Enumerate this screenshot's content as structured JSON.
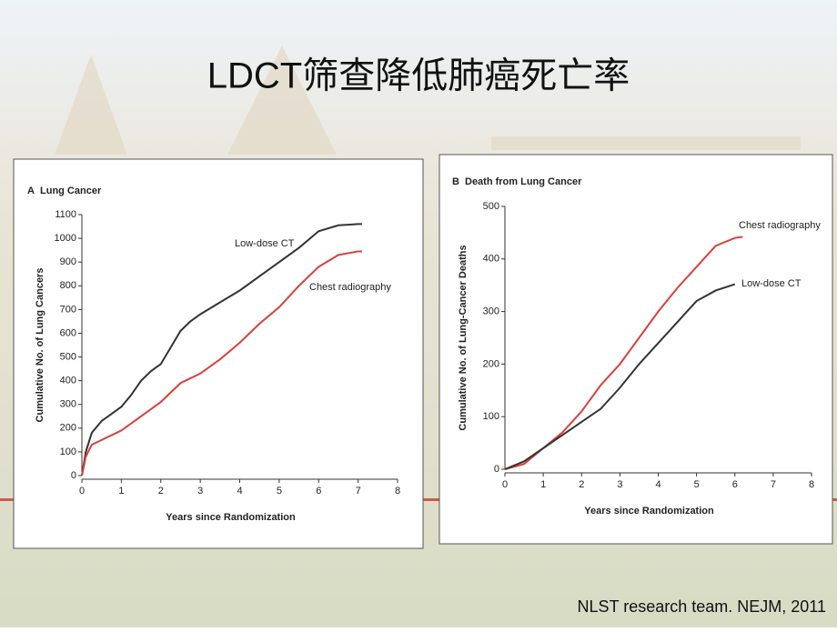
{
  "title": "LDCT筛查降低肺癌死亡率",
  "citation": "NLST research team. NEJM, 2011",
  "chart_data": [
    {
      "type": "line",
      "panel": "A",
      "title": "Lung Cancer",
      "xlabel": "Years since Randomization",
      "ylabel": "Cumulative No. of Lung Cancers",
      "xlim": [
        0,
        8
      ],
      "xticks": [
        0,
        1,
        2,
        3,
        4,
        5,
        6,
        7,
        8
      ],
      "ylim": [
        0,
        1100
      ],
      "yticks": [
        0,
        100,
        200,
        300,
        400,
        500,
        600,
        700,
        800,
        900,
        1000,
        1100
      ],
      "series": [
        {
          "name": "Low-dose CT",
          "color": "#333333",
          "x": [
            0,
            0.1,
            0.25,
            0.5,
            0.75,
            1,
            1.25,
            1.5,
            1.75,
            2,
            2.25,
            2.5,
            2.75,
            3,
            3.5,
            4,
            4.5,
            5,
            5.5,
            6,
            6.5,
            7,
            7.1
          ],
          "values": [
            0,
            100,
            180,
            230,
            260,
            290,
            340,
            400,
            440,
            470,
            540,
            610,
            650,
            680,
            730,
            780,
            840,
            900,
            960,
            1030,
            1055,
            1060,
            1060
          ]
        },
        {
          "name": "Chest radiography",
          "color": "#d9403a",
          "x": [
            0,
            0.1,
            0.25,
            0.5,
            0.75,
            1,
            1.5,
            2,
            2.5,
            3,
            3.5,
            4,
            4.5,
            5,
            5.5,
            6,
            6.5,
            7,
            7.1
          ],
          "values": [
            0,
            80,
            130,
            150,
            170,
            190,
            250,
            310,
            390,
            430,
            490,
            560,
            640,
            710,
            800,
            880,
            930,
            945,
            945
          ]
        }
      ]
    },
    {
      "type": "line",
      "panel": "B",
      "title": "Death from Lung Cancer",
      "xlabel": "Years since Randomization",
      "ylabel": "Cumulative No. of Lung-Cancer Deaths",
      "xlim": [
        0,
        8
      ],
      "xticks": [
        0,
        1,
        2,
        3,
        4,
        5,
        6,
        7,
        8
      ],
      "ylim": [
        0,
        500
      ],
      "yticks": [
        0,
        100,
        200,
        300,
        400,
        500
      ],
      "series": [
        {
          "name": "Chest radiography",
          "color": "#d9403a",
          "x": [
            0,
            0.5,
            1,
            1.5,
            2,
            2.5,
            3,
            3.5,
            4,
            4.5,
            5,
            5.5,
            6,
            6.2
          ],
          "values": [
            0,
            10,
            40,
            70,
            110,
            160,
            200,
            250,
            300,
            345,
            385,
            425,
            440,
            442
          ]
        },
        {
          "name": "Low-dose CT",
          "color": "#333333",
          "x": [
            0,
            0.5,
            1,
            1.5,
            2,
            2.5,
            3,
            3.5,
            4,
            4.5,
            5,
            5.5,
            6
          ],
          "values": [
            0,
            15,
            40,
            65,
            90,
            115,
            155,
            200,
            240,
            280,
            320,
            340,
            352
          ]
        }
      ]
    }
  ]
}
